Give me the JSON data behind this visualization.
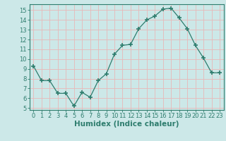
{
  "x": [
    0,
    1,
    2,
    3,
    4,
    5,
    6,
    7,
    8,
    9,
    10,
    11,
    12,
    13,
    14,
    15,
    16,
    17,
    18,
    19,
    20,
    21,
    22,
    23
  ],
  "y": [
    9.3,
    7.8,
    7.8,
    6.5,
    6.5,
    5.2,
    6.6,
    6.1,
    7.8,
    8.5,
    10.5,
    11.4,
    11.5,
    13.1,
    14.0,
    14.4,
    15.1,
    15.2,
    14.2,
    13.1,
    11.4,
    10.1,
    8.6,
    8.6
  ],
  "line_color": "#2e7d6e",
  "marker": "+",
  "marker_size": 4,
  "bg_color": "#cce8e8",
  "grid_color": "#e8b8b8",
  "xlabel": "Humidex (Indice chaleur)",
  "xlim": [
    -0.5,
    23.5
  ],
  "ylim": [
    4.8,
    15.6
  ],
  "yticks": [
    5,
    6,
    7,
    8,
    9,
    10,
    11,
    12,
    13,
    14,
    15
  ],
  "xticks": [
    0,
    1,
    2,
    3,
    4,
    5,
    6,
    7,
    8,
    9,
    10,
    11,
    12,
    13,
    14,
    15,
    16,
    17,
    18,
    19,
    20,
    21,
    22,
    23
  ],
  "tick_fontsize": 6,
  "label_fontsize": 7.5
}
